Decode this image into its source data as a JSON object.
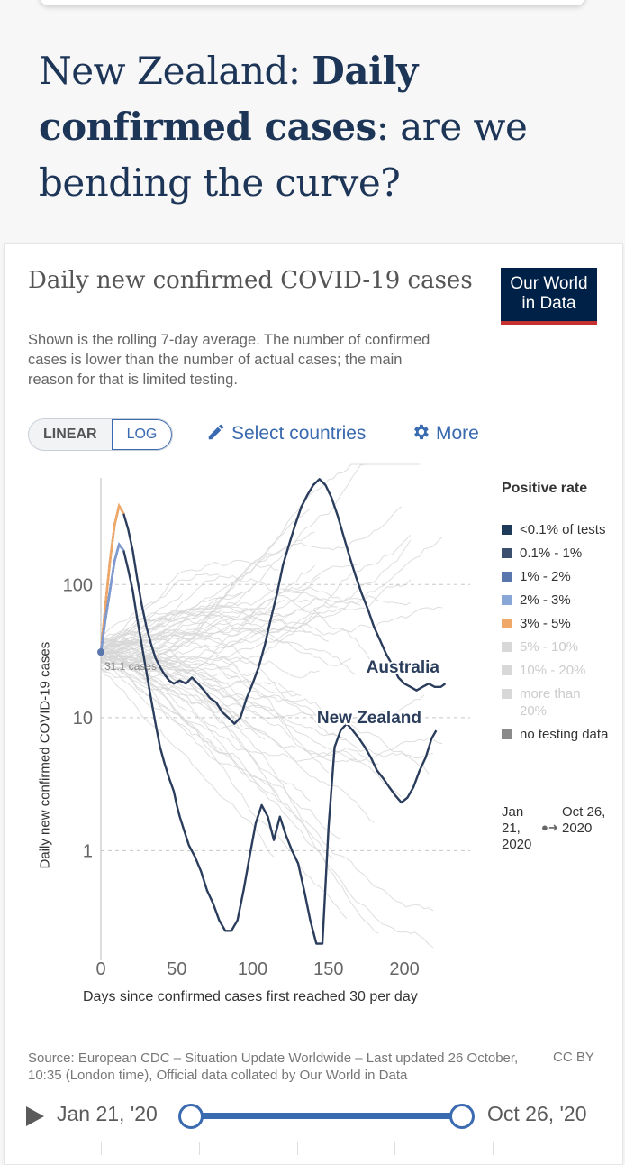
{
  "page": {
    "headline_part1": "New Zealand: ",
    "headline_bold": "Daily confirmed cases",
    "headline_part2": ": are we bending the curve?"
  },
  "card": {
    "title": "Daily new confirmed COVID-19 cases",
    "subtitle": "Shown is the rolling 7-day average. The number of confirmed cases is lower than the number of actual cases; the main reason for that is limited testing.",
    "logo_line1": "Our World",
    "logo_line2": "in Data",
    "scale_linear": "LINEAR",
    "scale_log": "LOG",
    "select_countries": "Select countries",
    "more": "More",
    "legend_title": "Positive rate",
    "legend": [
      {
        "label": "<0.1% of tests",
        "color": "#1f3b5a"
      },
      {
        "label": "0.1% - 1%",
        "color": "#3b4f6e"
      },
      {
        "label": "1% - 2%",
        "color": "#5a77ad"
      },
      {
        "label": "2% - 3%",
        "color": "#89a7d6"
      },
      {
        "label": "3% - 5%",
        "color": "#f0a868"
      },
      {
        "label": "5% - 10%",
        "color": "#d8d8d8"
      },
      {
        "label": "10% - 20%",
        "color": "#d8d8d8"
      },
      {
        "label": "more than 20%",
        "color": "#d8d8d8"
      },
      {
        "label": "no testing data",
        "color": "#8a8a8a"
      }
    ],
    "time_start": "Jan 21, 2020",
    "time_end": "Oct 26, 2020",
    "source": "Source: European CDC – Situation Update Worldwide – Last updated 26 October, 10:35 (London time), Official data collated by Our World in Data",
    "license": "CC BY",
    "slider_start": "Jan 21, '20",
    "slider_end": "Oct 26, '20"
  },
  "chart_data": {
    "type": "line",
    "ylabel": "Daily new confirmed COVID-19 cases",
    "xlabel": "Days since confirmed cases first reached 30 per day",
    "yscale": "log",
    "xlim": [
      0,
      235
    ],
    "ylim": [
      0.15,
      800
    ],
    "x_ticks": [
      0,
      50,
      100,
      150,
      200
    ],
    "y_ticks": [
      1,
      10,
      100
    ],
    "y_tick_labels": [
      "1",
      "10",
      "100"
    ],
    "annotation": "31.1 cases",
    "series": [
      {
        "name": "Australia",
        "x": [
          0,
          3,
          6,
          9,
          12,
          15,
          18,
          21,
          24,
          27,
          30,
          33,
          36,
          39,
          42,
          45,
          48,
          52,
          56,
          60,
          64,
          68,
          72,
          76,
          80,
          84,
          88,
          92,
          96,
          100,
          104,
          108,
          112,
          116,
          120,
          124,
          128,
          132,
          136,
          140,
          144,
          148,
          152,
          156,
          160,
          164,
          168,
          172,
          176,
          180,
          184,
          188,
          192,
          196,
          200,
          204,
          208,
          212,
          216,
          220,
          224,
          227
        ],
        "y": [
          31,
          70,
          150,
          280,
          390,
          340,
          260,
          180,
          110,
          70,
          48,
          36,
          28,
          24,
          21,
          19,
          18,
          19,
          18,
          20,
          18,
          16,
          14,
          13,
          11,
          10,
          9,
          10,
          14,
          18,
          24,
          35,
          55,
          85,
          140,
          200,
          280,
          380,
          470,
          560,
          620,
          560,
          450,
          330,
          230,
          160,
          115,
          85,
          65,
          48,
          38,
          30,
          25,
          20,
          18,
          17,
          16,
          17,
          18,
          17,
          17,
          18
        ]
      },
      {
        "name": "New Zealand",
        "x": [
          0,
          3,
          6,
          9,
          12,
          15,
          18,
          21,
          24,
          27,
          30,
          33,
          36,
          39,
          42,
          45,
          48,
          50,
          52,
          55,
          58,
          62,
          66,
          70,
          74,
          78,
          82,
          86,
          90,
          94,
          98,
          102,
          106,
          110,
          114,
          118,
          122,
          126,
          130,
          134,
          138,
          142,
          146,
          150,
          154,
          158,
          162,
          166,
          170,
          174,
          178,
          182,
          186,
          190,
          194,
          198,
          202,
          206,
          210,
          214,
          218,
          221
        ],
        "y": [
          31,
          55,
          90,
          150,
          200,
          180,
          130,
          90,
          55,
          35,
          22,
          14,
          9,
          6,
          4.5,
          3.5,
          2.8,
          2.2,
          1.8,
          1.4,
          1.1,
          0.9,
          0.7,
          0.5,
          0.4,
          0.3,
          0.25,
          0.25,
          0.3,
          0.5,
          0.9,
          1.6,
          2.2,
          1.8,
          1.2,
          1.8,
          1.3,
          1.0,
          0.8,
          0.5,
          0.3,
          0.2,
          0.2,
          1.5,
          6,
          8,
          9,
          8,
          7,
          6,
          5,
          4,
          3.5,
          3,
          2.6,
          2.3,
          2.5,
          3,
          4,
          5,
          7,
          8
        ]
      }
    ]
  }
}
